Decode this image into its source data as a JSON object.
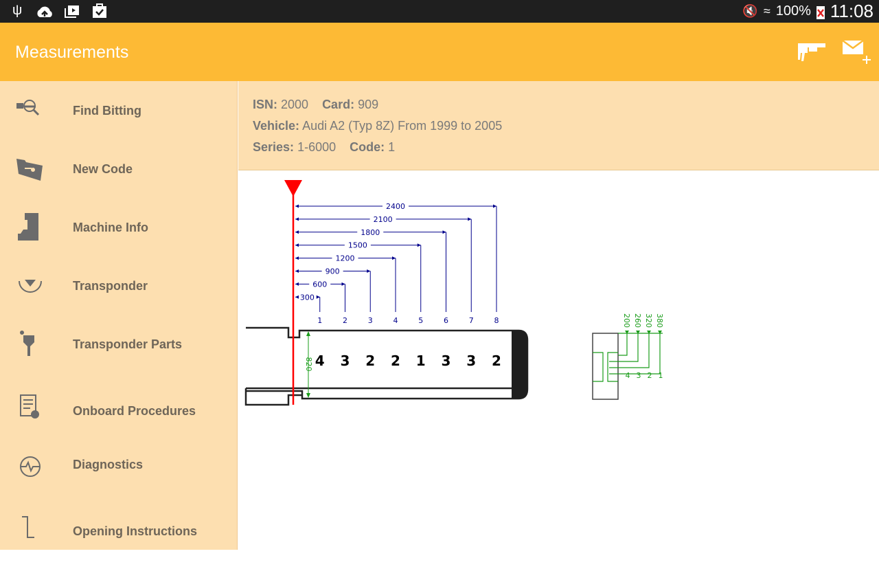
{
  "status_bar": {
    "battery": "100%",
    "time": "11:08",
    "icons": [
      "usb-icon",
      "cloud-upload-icon",
      "media-icon",
      "task-check-icon",
      "mute-icon",
      "wifi-icon",
      "battery-icon"
    ]
  },
  "app_bar": {
    "title": "Measurements",
    "actions": [
      {
        "icon": "caliper-icon"
      },
      {
        "icon": "email-add-icon"
      }
    ]
  },
  "sidebar": {
    "items": [
      {
        "label": "Find Bitting",
        "icon": "find-bitting-icon"
      },
      {
        "label": "New Code",
        "icon": "folder-key-icon"
      },
      {
        "label": "Machine Info",
        "icon": "machine-icon"
      },
      {
        "label": "Transponder",
        "icon": "transponder-icon"
      },
      {
        "label": "Transponder Parts",
        "icon": "transponder-parts-icon"
      },
      {
        "label": "Onboard Procedures",
        "icon": "checklist-icon"
      },
      {
        "label": "Diagnostics",
        "icon": "diagnostics-icon"
      },
      {
        "label": "Opening Instructions",
        "icon": "opening-icon"
      }
    ]
  },
  "info": {
    "isn_label": "ISN:",
    "isn": "2000",
    "card_label": "Card:",
    "card": "909",
    "vehicle_label": "Vehicle:",
    "vehicle": "Audi A2 (Typ 8Z) From 1999 to 2005",
    "series_label": "Series:",
    "series": "1-6000",
    "code_label": "Code:",
    "code": "1"
  },
  "diagram": {
    "cut_positions": [
      300,
      600,
      900,
      1200,
      1500,
      1800,
      2100,
      2400
    ],
    "cut_numbers": [
      "1",
      "2",
      "3",
      "4",
      "5",
      "6",
      "7",
      "8"
    ],
    "bitting": [
      "4",
      "3",
      "2",
      "2",
      "1",
      "3",
      "3",
      "2"
    ],
    "blade_width": "820",
    "depths": [
      {
        "value": "200",
        "number": "4"
      },
      {
        "value": "260",
        "number": "3"
      },
      {
        "value": "320",
        "number": "2"
      },
      {
        "value": "380",
        "number": "1"
      }
    ],
    "colors": {
      "stop": "#ff0000",
      "dimension": "#00008b",
      "depth": "#1a9c1a"
    }
  }
}
